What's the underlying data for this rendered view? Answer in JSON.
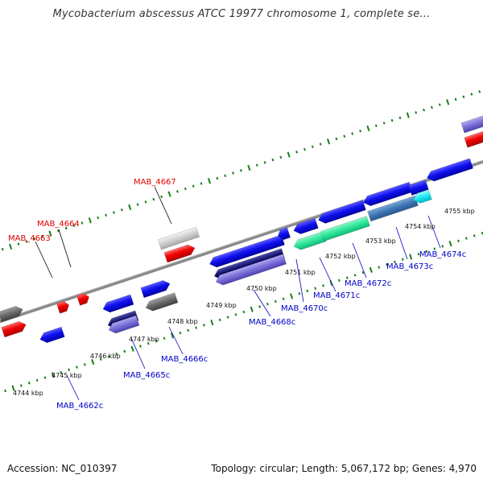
{
  "title": "Mycobacterium abscessus ATCC 19977 chromosome 1, complete se...",
  "footer": {
    "accession": "Accession: NC_010397",
    "info": "Topology: circular; Length: 5,067,172 bp; Genes: 4,970"
  },
  "colors": {
    "forward_label": "#e00000",
    "reverse_label": "#0000c8",
    "backbone": "#8a8a8a",
    "tick_green": "#1a7f1a"
  },
  "scale_ticks": [
    "4744 kbp",
    "4745 kbp",
    "4746 kbp",
    "4747 kbp",
    "4748 kbp",
    "4749 kbp",
    "4750 kbp",
    "4751 kbp",
    "4752 kbp",
    "4753 kbp",
    "4754 kbp",
    "4755 kbp"
  ],
  "gene_labels": {
    "forward": [
      "MAB_4663",
      "MAB_4664",
      "MAB_4667"
    ],
    "reverse": [
      "MAB_4662c",
      "MAB_4665c",
      "MAB_4666c",
      "MAB_4668c",
      "MAB_4670c",
      "MAB_4671c",
      "MAB_4672c",
      "MAB_4673c",
      "MAB_4674c"
    ]
  }
}
